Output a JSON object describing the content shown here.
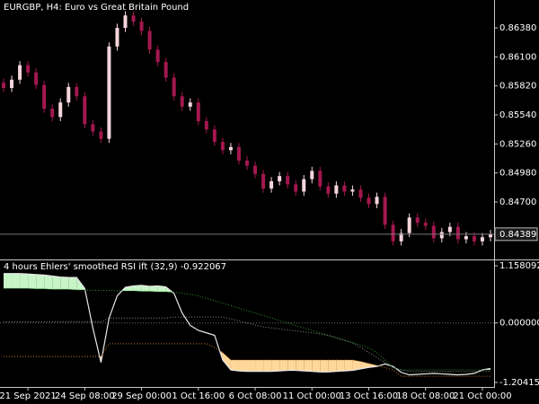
{
  "chart_data": [
    {
      "type": "candlestick",
      "title": "EURGBP, H4:  Euro vs Great Britain Pound",
      "up_color": "#f6d5dc",
      "down_color": "#a3184e",
      "open": [
        0.8585,
        0.858,
        0.8588,
        0.8602,
        0.8595,
        0.8583,
        0.856,
        0.8552,
        0.8566,
        0.8581,
        0.8572,
        0.8545,
        0.8538,
        0.8531,
        0.862,
        0.8638,
        0.865,
        0.8644,
        0.8635,
        0.8617,
        0.8605,
        0.859,
        0.8572,
        0.8562,
        0.8566,
        0.8548,
        0.854,
        0.8528,
        0.852,
        0.8523,
        0.851,
        0.8505,
        0.8497,
        0.8483,
        0.849,
        0.8495,
        0.8487,
        0.848,
        0.8492,
        0.85,
        0.8485,
        0.8478,
        0.8486,
        0.848,
        0.8482,
        0.8474,
        0.8468,
        0.8475,
        0.8448,
        0.8432,
        0.844,
        0.8455,
        0.845,
        0.8447,
        0.8435,
        0.8441,
        0.8446,
        0.8434,
        0.8437,
        0.8432,
        0.8436
      ],
      "high": [
        0.8589,
        0.8592,
        0.8606,
        0.8606,
        0.8599,
        0.8587,
        0.8564,
        0.857,
        0.8585,
        0.8585,
        0.8576,
        0.8549,
        0.8542,
        0.8624,
        0.8642,
        0.8654,
        0.8654,
        0.8648,
        0.8639,
        0.8621,
        0.8609,
        0.8594,
        0.8576,
        0.857,
        0.857,
        0.8552,
        0.8544,
        0.8532,
        0.8527,
        0.8527,
        0.8514,
        0.8509,
        0.8501,
        0.8494,
        0.8499,
        0.8499,
        0.8491,
        0.8496,
        0.8504,
        0.8504,
        0.8489,
        0.849,
        0.849,
        0.8486,
        0.8486,
        0.8478,
        0.8479,
        0.8479,
        0.8452,
        0.8444,
        0.8459,
        0.8459,
        0.8454,
        0.8451,
        0.8445,
        0.845,
        0.845,
        0.8441,
        0.8441,
        0.844,
        0.8443
      ],
      "low": [
        0.8576,
        0.8576,
        0.8584,
        0.8591,
        0.8579,
        0.8556,
        0.8548,
        0.8548,
        0.8562,
        0.8568,
        0.8541,
        0.8534,
        0.8527,
        0.8527,
        0.8616,
        0.8634,
        0.864,
        0.8631,
        0.8613,
        0.8601,
        0.8586,
        0.8568,
        0.8558,
        0.8558,
        0.8544,
        0.8536,
        0.8524,
        0.8516,
        0.8516,
        0.8506,
        0.8501,
        0.8493,
        0.8479,
        0.8479,
        0.8486,
        0.8483,
        0.8476,
        0.8476,
        0.8488,
        0.8481,
        0.8474,
        0.8474,
        0.8476,
        0.8476,
        0.847,
        0.8464,
        0.8464,
        0.8444,
        0.8428,
        0.8428,
        0.8436,
        0.8446,
        0.8443,
        0.8431,
        0.8431,
        0.8437,
        0.843,
        0.843,
        0.8428,
        0.8428,
        0.8432
      ],
      "close": [
        0.858,
        0.8588,
        0.8602,
        0.8595,
        0.8583,
        0.856,
        0.8552,
        0.8566,
        0.8581,
        0.8572,
        0.8545,
        0.8538,
        0.8531,
        0.862,
        0.8638,
        0.865,
        0.8644,
        0.8635,
        0.8617,
        0.8605,
        0.859,
        0.8572,
        0.8562,
        0.8566,
        0.8548,
        0.854,
        0.8528,
        0.852,
        0.8523,
        0.851,
        0.8505,
        0.8497,
        0.8483,
        0.849,
        0.8495,
        0.8487,
        0.848,
        0.8492,
        0.85,
        0.8485,
        0.8478,
        0.8486,
        0.848,
        0.8482,
        0.8474,
        0.8468,
        0.8475,
        0.8448,
        0.8432,
        0.844,
        0.8455,
        0.845,
        0.8447,
        0.8435,
        0.8441,
        0.8446,
        0.8434,
        0.8437,
        0.8432,
        0.8436,
        0.84389
      ],
      "ylim": [
        0.84154,
        0.86649
      ],
      "yticks": [
        {
          "value": 0.8638,
          "label": "0.86380"
        },
        {
          "value": 0.861,
          "label": "0.86100"
        },
        {
          "value": 0.8582,
          "label": "0.85820"
        },
        {
          "value": 0.8554,
          "label": "0.85540"
        },
        {
          "value": 0.8526,
          "label": "0.85260"
        },
        {
          "value": 0.8498,
          "label": "0.84980"
        },
        {
          "value": 0.847,
          "label": "0.84700"
        }
      ]
    },
    {
      "type": "line",
      "title": "4 hours Ehlers' smoothed RSI ift (32,9)",
      "categories": [
        null,
        null,
        null,
        "21 Sep 2021",
        null,
        null,
        null,
        null,
        null,
        null,
        "24 Sep 08:00",
        null,
        null,
        null,
        null,
        null,
        null,
        "29 Sep 00:00",
        null,
        null,
        null,
        null,
        null,
        null,
        "1 Oct 16:00",
        null,
        null,
        null,
        null,
        null,
        null,
        "6 Oct 08:00",
        null,
        null,
        null,
        null,
        null,
        null,
        "11 Oct 00:00",
        null,
        null,
        null,
        null,
        null,
        null,
        "13 Oct 16:00",
        null,
        null,
        null,
        null,
        null,
        null,
        "18 Oct 08:00",
        null,
        null,
        null,
        null,
        null,
        null,
        "21 Oct 00:00",
        null
      ],
      "fill_above_color": "#c8f5c8",
      "fill_below_color": "#ffd79a",
      "series": [
        {
          "color": "#e8e8e8",
          "line_style": "solid",
          "values": [
            1.0,
            1.0,
            1.0,
            0.99,
            0.98,
            0.97,
            0.95,
            0.93,
            0.92,
            0.92,
            0.7,
            -0.1,
            -0.8,
            0.1,
            0.55,
            0.72,
            0.75,
            0.76,
            0.74,
            0.75,
            0.73,
            0.6,
            0.2,
            -0.05,
            -0.15,
            -0.2,
            -0.25,
            -0.75,
            -0.95,
            -0.97,
            -0.98,
            -0.98,
            -0.98,
            -0.98,
            -0.97,
            -0.96,
            -0.96,
            -0.97,
            -0.98,
            -0.99,
            -0.99,
            -0.98,
            -0.97,
            -0.96,
            -0.93,
            -0.9,
            -0.88,
            -0.83,
            -0.88,
            -1.0,
            -1.05,
            -1.04,
            -1.03,
            -1.02,
            -1.03,
            -1.04,
            -1.05,
            -1.04,
            -1.02,
            -0.95,
            -0.922067
          ]
        },
        {
          "color": "#2e9a2e",
          "line_style": "dotted",
          "values": [
            0.7,
            0.7,
            0.7,
            0.7,
            0.69,
            0.69,
            0.68,
            0.68,
            0.68,
            0.67,
            0.67,
            0.66,
            0.66,
            0.66,
            0.65,
            0.65,
            0.65,
            0.64,
            0.64,
            0.63,
            0.63,
            0.62,
            0.6,
            0.58,
            0.55,
            0.5,
            0.45,
            0.4,
            0.35,
            0.3,
            0.25,
            0.2,
            0.15,
            0.1,
            0.05,
            0,
            -0.05,
            -0.1,
            -0.15,
            -0.2,
            -0.25,
            -0.3,
            -0.35,
            -0.4,
            -0.45,
            -0.5,
            -0.6,
            -0.75,
            -0.9,
            -0.95,
            -0.95,
            -0.95,
            -0.95,
            -0.95,
            -0.95,
            -0.95,
            -0.95,
            -0.95,
            -0.95,
            -0.95,
            -0.95
          ]
        },
        {
          "color": "#8a8a8a",
          "line_style": "dotted",
          "values": [
            0.02,
            0.02,
            0.02,
            0.02,
            0.02,
            0.02,
            0.02,
            0.02,
            0.02,
            0.02,
            0.02,
            0.02,
            0.02,
            0.1,
            0.1,
            0.1,
            0.1,
            0.1,
            0.1,
            0.1,
            0.1,
            0.12,
            0.12,
            0.12,
            0.12,
            0.12,
            0.12,
            0.12,
            0.08,
            0.04,
            0,
            -0.04,
            -0.08,
            -0.1,
            -0.12,
            -0.14,
            -0.16,
            -0.18,
            -0.2,
            -0.22,
            -0.25,
            -0.3,
            -0.35,
            -0.4,
            -0.5,
            -0.6,
            -0.7,
            -0.8,
            -0.9,
            -0.95,
            -0.98,
            -0.98,
            -0.98,
            -0.98,
            -0.98,
            -0.98,
            -0.98,
            -0.98,
            -0.98,
            -0.98,
            -0.98
          ]
        },
        {
          "color": "#c87a20",
          "line_style": "dotted",
          "values": [
            -0.68,
            -0.68,
            -0.68,
            -0.68,
            -0.68,
            -0.68,
            -0.68,
            -0.68,
            -0.68,
            -0.68,
            -0.68,
            -0.68,
            -0.68,
            -0.42,
            -0.42,
            -0.42,
            -0.42,
            -0.42,
            -0.42,
            -0.42,
            -0.42,
            -0.42,
            -0.42,
            -0.42,
            -0.42,
            -0.42,
            -0.5,
            -0.6,
            -0.75,
            -0.75,
            -0.75,
            -0.75,
            -0.75,
            -0.75,
            -0.75,
            -0.75,
            -0.75,
            -0.75,
            -0.75,
            -0.75,
            -0.75,
            -0.75,
            -0.75,
            -0.75,
            -0.78,
            -0.82,
            -0.86,
            -0.9,
            -0.95,
            -1.08,
            -1.08,
            -1.08,
            -1.08,
            -1.08,
            -1.08,
            -1.08,
            -1.08,
            -1.08,
            -1.08,
            -1.08,
            -1.08
          ]
        }
      ],
      "ylim": [
        -1.204157,
        1.158092
      ],
      "yticks": [
        1.158092,
        {
          "value": 0,
          "label": "0.000000"
        },
        -1.204157
      ]
    }
  ]
}
